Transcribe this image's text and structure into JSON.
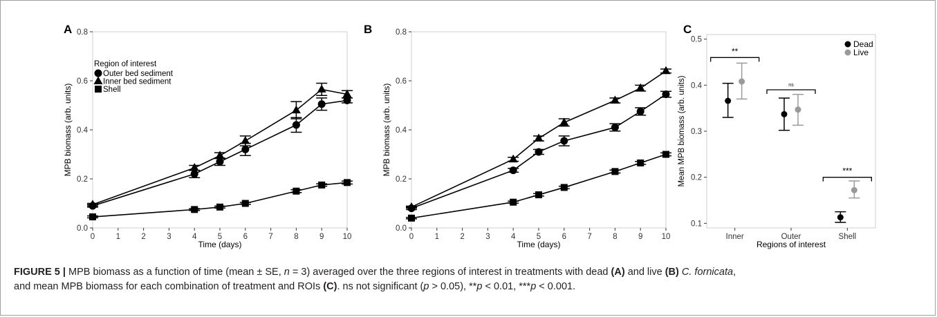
{
  "chart_data": [
    {
      "type": "line",
      "panel_label": "A",
      "xlabel": "Time (days)",
      "ylabel": "MPB biomass (arb. units)",
      "xlim": [
        0,
        10
      ],
      "ylim": [
        0,
        0.8
      ],
      "x_ticks": [
        0,
        1,
        2,
        3,
        4,
        5,
        6,
        7,
        8,
        9,
        10
      ],
      "x_tick_labels": [
        "0",
        "1",
        "2",
        "3",
        "4",
        "5",
        "6",
        "7",
        "8",
        "9",
        "10"
      ],
      "y_ticks": [
        0,
        0.2,
        0.4,
        0.6,
        0.8
      ],
      "y_tick_labels": [
        "0.0",
        "0.2",
        "0.4",
        "0.6",
        "0.8"
      ],
      "grid": false,
      "legend": {
        "title": "Region of interest",
        "placement": "top-left",
        "entries": [
          "Outer bed sediment",
          "Inner bed sediment",
          "Shell"
        ]
      },
      "x": [
        0,
        4,
        5,
        6,
        8,
        9,
        10
      ],
      "series": [
        {
          "name": "Outer bed sediment",
          "marker": "circle",
          "values": [
            0.09,
            0.22,
            0.27,
            0.32,
            0.42,
            0.505,
            0.52
          ],
          "errors": [
            0.005,
            0.015,
            0.015,
            0.025,
            0.03,
            0.025,
            0.01
          ]
        },
        {
          "name": "Inner bed sediment",
          "marker": "triangle",
          "values": [
            0.095,
            0.245,
            0.295,
            0.355,
            0.48,
            0.565,
            0.545
          ],
          "errors": [
            0.005,
            0.01,
            0.012,
            0.02,
            0.035,
            0.025,
            0.015
          ]
        },
        {
          "name": "Shell",
          "marker": "square",
          "values": [
            0.045,
            0.075,
            0.085,
            0.1,
            0.15,
            0.175,
            0.185
          ],
          "errors": [
            0.004,
            0.004,
            0.004,
            0.004,
            0.006,
            0.005,
            0.006
          ]
        }
      ]
    },
    {
      "type": "line",
      "panel_label": "B",
      "xlabel": "Time (days)",
      "ylabel": "MPB biomass (arb. units)",
      "xlim": [
        0,
        10
      ],
      "ylim": [
        0,
        0.8
      ],
      "x_ticks": [
        0,
        1,
        2,
        3,
        4,
        5,
        6,
        7,
        8,
        9,
        10
      ],
      "x_tick_labels": [
        "0",
        "1",
        "2",
        "3",
        "4",
        "5",
        "6",
        "7",
        "8",
        "9",
        "10"
      ],
      "y_ticks": [
        0,
        0.2,
        0.4,
        0.6,
        0.8
      ],
      "y_tick_labels": [
        "0.0",
        "0.2",
        "0.4",
        "0.6",
        "0.8"
      ],
      "grid": false,
      "x": [
        0,
        4,
        5,
        6,
        8,
        9,
        10
      ],
      "series": [
        {
          "marker": "circle",
          "values": [
            0.08,
            0.235,
            0.31,
            0.355,
            0.41,
            0.475,
            0.545
          ],
          "errors": [
            0.005,
            0.008,
            0.01,
            0.02,
            0.015,
            0.015,
            0.012
          ]
        },
        {
          "marker": "triangle",
          "values": [
            0.085,
            0.28,
            0.365,
            0.43,
            0.52,
            0.57,
            0.64
          ],
          "errors": [
            0.004,
            0.008,
            0.01,
            0.015,
            0.01,
            0.012,
            0.008
          ]
        },
        {
          "marker": "square",
          "values": [
            0.04,
            0.105,
            0.135,
            0.165,
            0.23,
            0.265,
            0.3
          ],
          "errors": [
            0.003,
            0.004,
            0.005,
            0.005,
            0.006,
            0.006,
            0.006
          ]
        }
      ]
    },
    {
      "type": "scatter",
      "panel_label": "C",
      "xlabel": "Regions of interest",
      "ylabel": "Mean MPB biomass (arb. units)",
      "categories": [
        "Inner",
        "Outer",
        "Shell"
      ],
      "ylim": [
        0.09,
        0.51
      ],
      "y_ticks": [
        0.1,
        0.2,
        0.3,
        0.4,
        0.5
      ],
      "y_tick_labels": [
        "0.1",
        "0.2",
        "0.3",
        "0.4",
        "0.5"
      ],
      "grid": false,
      "legend": {
        "placement": "top-right",
        "entries": [
          "Dead",
          "Live"
        ]
      },
      "series": [
        {
          "name": "Dead",
          "color": "#000000",
          "values": [
            0.366,
            0.337,
            0.113
          ],
          "lower": [
            0.33,
            0.302,
            0.102
          ],
          "upper": [
            0.404,
            0.372,
            0.125
          ]
        },
        {
          "name": "Live",
          "color": "#9a9a9a",
          "values": [
            0.408,
            0.347,
            0.172
          ],
          "lower": [
            0.37,
            0.313,
            0.155
          ],
          "upper": [
            0.448,
            0.38,
            0.192
          ]
        }
      ],
      "annotations": [
        {
          "text": "**",
          "category": "Inner",
          "y": 0.46
        },
        {
          "text": "ns",
          "category": "Outer",
          "y": 0.39
        },
        {
          "text": "***",
          "category": "Shell",
          "y": 0.2
        }
      ]
    }
  ],
  "caption": {
    "figure_label": "FIGURE 5 |",
    "part1": " MPB biomass as a function of time (mean ± SE, ",
    "n_symbol": "n",
    "part2": " = 3) averaged over the three regions of interest in treatments with dead ",
    "label_a": "(A)",
    "part3": " and live ",
    "label_b": "(B)",
    "species_abbrev": " C. fornicata",
    "part4": ",",
    "part5": "and mean MPB biomass for each combination of treatment and ROIs ",
    "label_c": "(C)",
    "part6": ". ns not significant (",
    "p1": "p",
    "part7": " > 0.05), **",
    "p2": "p",
    "part8": " < 0.01, ***",
    "p3": "p",
    "part9": " < 0.001."
  }
}
